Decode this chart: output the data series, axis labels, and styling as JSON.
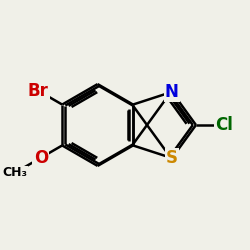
{
  "bg_color": "#f0f0e8",
  "bond_color": "#000000",
  "bond_width": 1.8,
  "atom_labels": {
    "N": {
      "color": "#0000dd",
      "fontsize": 12,
      "fontweight": "bold"
    },
    "S": {
      "color": "#cc8800",
      "fontsize": 12,
      "fontweight": "bold"
    },
    "Br": {
      "color": "#cc0000",
      "fontsize": 12,
      "fontweight": "bold"
    },
    "O": {
      "color": "#cc0000",
      "fontsize": 12,
      "fontweight": "bold"
    },
    "Cl": {
      "color": "#006600",
      "fontsize": 12,
      "fontweight": "bold"
    }
  },
  "figsize": [
    2.5,
    2.5
  ],
  "dpi": 100
}
